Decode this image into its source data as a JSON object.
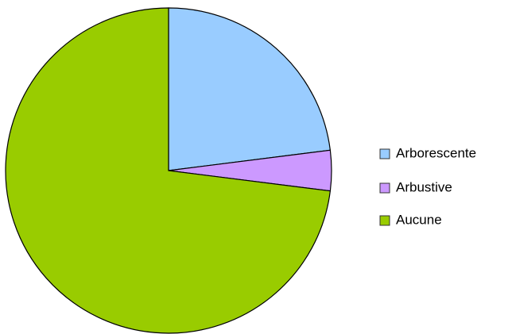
{
  "chart_data": {
    "type": "pie",
    "categories": [
      "Arborescente",
      "Arbustive",
      "Aucune"
    ],
    "values": [
      23,
      4,
      73
    ],
    "colors": [
      "#99ccff",
      "#cc99ff",
      "#99cc00"
    ],
    "legend": "right"
  }
}
